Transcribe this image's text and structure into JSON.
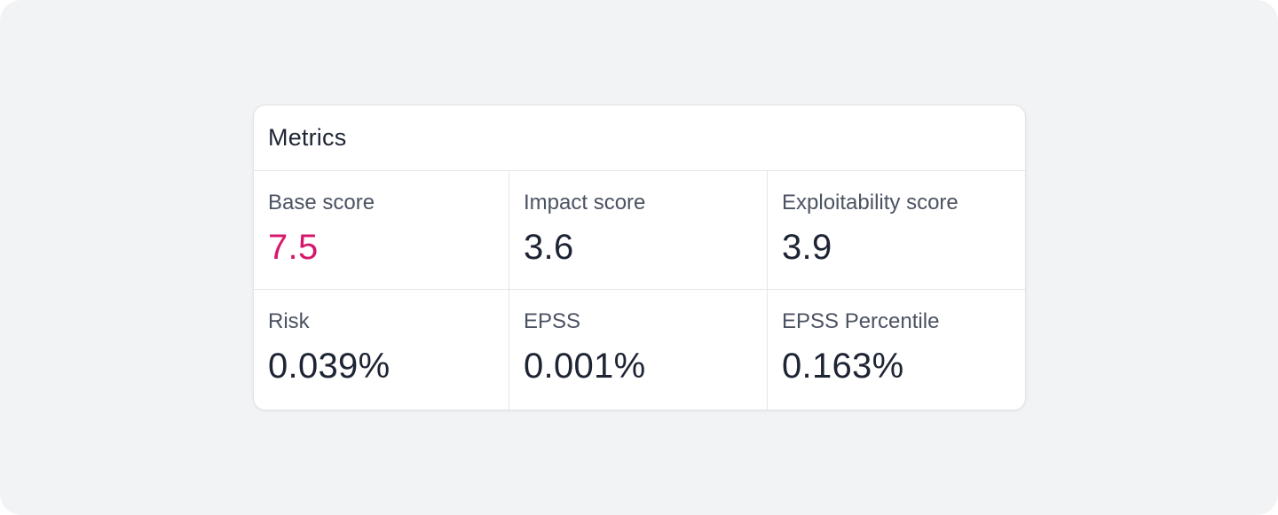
{
  "card": {
    "title": "Metrics"
  },
  "colors": {
    "highlight_value": "#d6186c",
    "default_value": "#1d2433",
    "label": "#4b5262",
    "background": "#f2f3f5"
  },
  "metrics": [
    {
      "label": "Base score",
      "value": "7.5",
      "highlight": true
    },
    {
      "label": "Impact score",
      "value": "3.6",
      "highlight": false
    },
    {
      "label": "Exploitability score",
      "value": "3.9",
      "highlight": false
    },
    {
      "label": "Risk",
      "value": "0.039%",
      "highlight": false
    },
    {
      "label": "EPSS",
      "value": "0.001%",
      "highlight": false
    },
    {
      "label": "EPSS Percentile",
      "value": "0.163%",
      "highlight": false
    }
  ]
}
